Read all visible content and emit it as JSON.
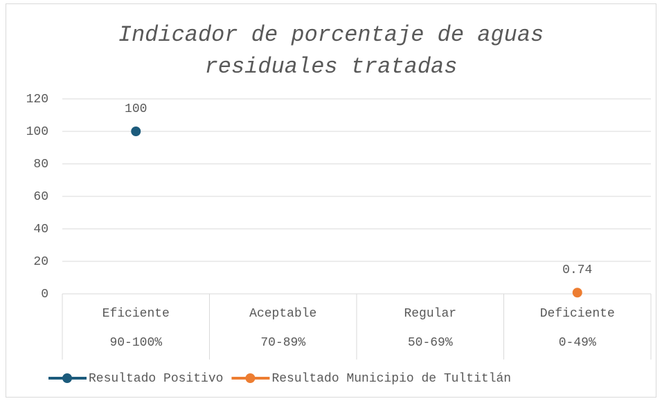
{
  "chart_data": {
    "type": "line",
    "title": "Indicador de porcentaje de aguas residuales tratadas",
    "categories": [
      "Eficiente",
      "Aceptable",
      "Regular",
      "Deficiente"
    ],
    "subcategories": [
      "90-100%",
      "70-89%",
      "50-69%",
      "0-49%"
    ],
    "series": [
      {
        "name": "Resultado Positivo",
        "color": "#1c5b7c",
        "values": [
          100,
          null,
          null,
          null
        ]
      },
      {
        "name": "Resultado Municipio de Tultitlán",
        "color": "#ed7d31",
        "values": [
          null,
          null,
          null,
          0.74
        ]
      }
    ],
    "ylim": [
      0,
      120
    ],
    "yticks": [
      0,
      20,
      40,
      60,
      80,
      100,
      120
    ],
    "grid": true,
    "legend": "bottom"
  }
}
